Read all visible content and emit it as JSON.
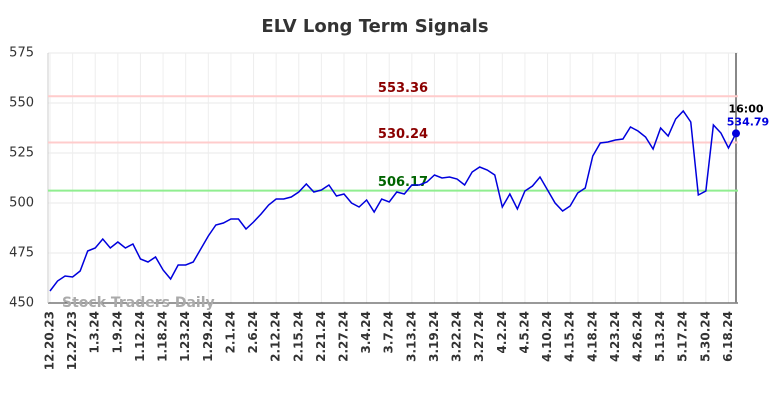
{
  "chart_data": {
    "type": "line",
    "title": "ELV Long Term Signals",
    "categories": [
      "12.20.23",
      null,
      null,
      "12.27.23",
      null,
      null,
      "1.3.24",
      null,
      null,
      "1.9.24",
      null,
      null,
      "1.12.24",
      null,
      null,
      "1.18.24",
      null,
      null,
      "1.23.24",
      null,
      null,
      "1.29.24",
      null,
      null,
      "2.1.24",
      null,
      null,
      "2.6.24",
      null,
      null,
      "2.12.24",
      null,
      null,
      "2.15.24",
      null,
      null,
      "2.21.24",
      null,
      null,
      "2.27.24",
      null,
      null,
      "3.4.24",
      null,
      null,
      "3.7.24",
      null,
      null,
      "3.13.24",
      null,
      null,
      "3.19.24",
      null,
      null,
      "3.22.24",
      null,
      null,
      "3.27.24",
      null,
      null,
      "4.2.24",
      null,
      null,
      "4.5.24",
      null,
      null,
      "4.10.24",
      null,
      null,
      "4.15.24",
      null,
      null,
      "4.18.24",
      null,
      null,
      "4.23.24",
      null,
      null,
      "4.26.24",
      null,
      null,
      "5.13.24",
      null,
      null,
      "5.17.24",
      null,
      null,
      "5.30.24",
      null,
      null,
      "6.18.24",
      null
    ],
    "values": [
      456,
      461,
      463.5,
      463,
      466,
      476,
      477.5,
      482,
      477.5,
      480.5,
      477.5,
      479.5,
      472,
      470.5,
      473,
      466.5,
      462,
      469,
      469,
      470.5,
      477,
      483.5,
      489,
      490,
      492,
      492,
      487,
      490.5,
      494.5,
      499,
      502,
      502,
      503,
      505.5,
      509.5,
      505.5,
      506.5,
      509,
      503.5,
      504.5,
      500,
      498,
      501.5,
      495.5,
      502,
      500.5,
      505.5,
      504.5,
      509,
      509,
      510.5,
      514,
      512.5,
      513,
      512,
      509,
      515.5,
      518,
      516.5,
      514,
      498,
      504.5,
      497,
      506,
      508.5,
      513,
      506.5,
      500,
      496,
      498.5,
      505,
      507.5,
      523.5,
      530,
      530.5,
      531.5,
      532,
      538,
      536,
      533,
      527,
      537.5,
      533.5,
      542,
      546,
      540.5,
      504,
      506,
      539,
      535,
      527.5,
      534.79
    ],
    "color": "#0000dd",
    "ylim": [
      450,
      575
    ],
    "yticks": [
      450,
      475,
      500,
      525,
      550,
      575
    ],
    "grid": true,
    "hlines": [
      {
        "value": 553.36,
        "color": "#ffcccc",
        "label_color": "#8b0000"
      },
      {
        "value": 530.24,
        "color": "#ffcccc",
        "label_color": "#8b0000"
      },
      {
        "value": 506.17,
        "color": "#90ee90",
        "label_color": "#006400"
      }
    ],
    "last_time": "16:00",
    "watermark": "Stock Traders Daily"
  }
}
